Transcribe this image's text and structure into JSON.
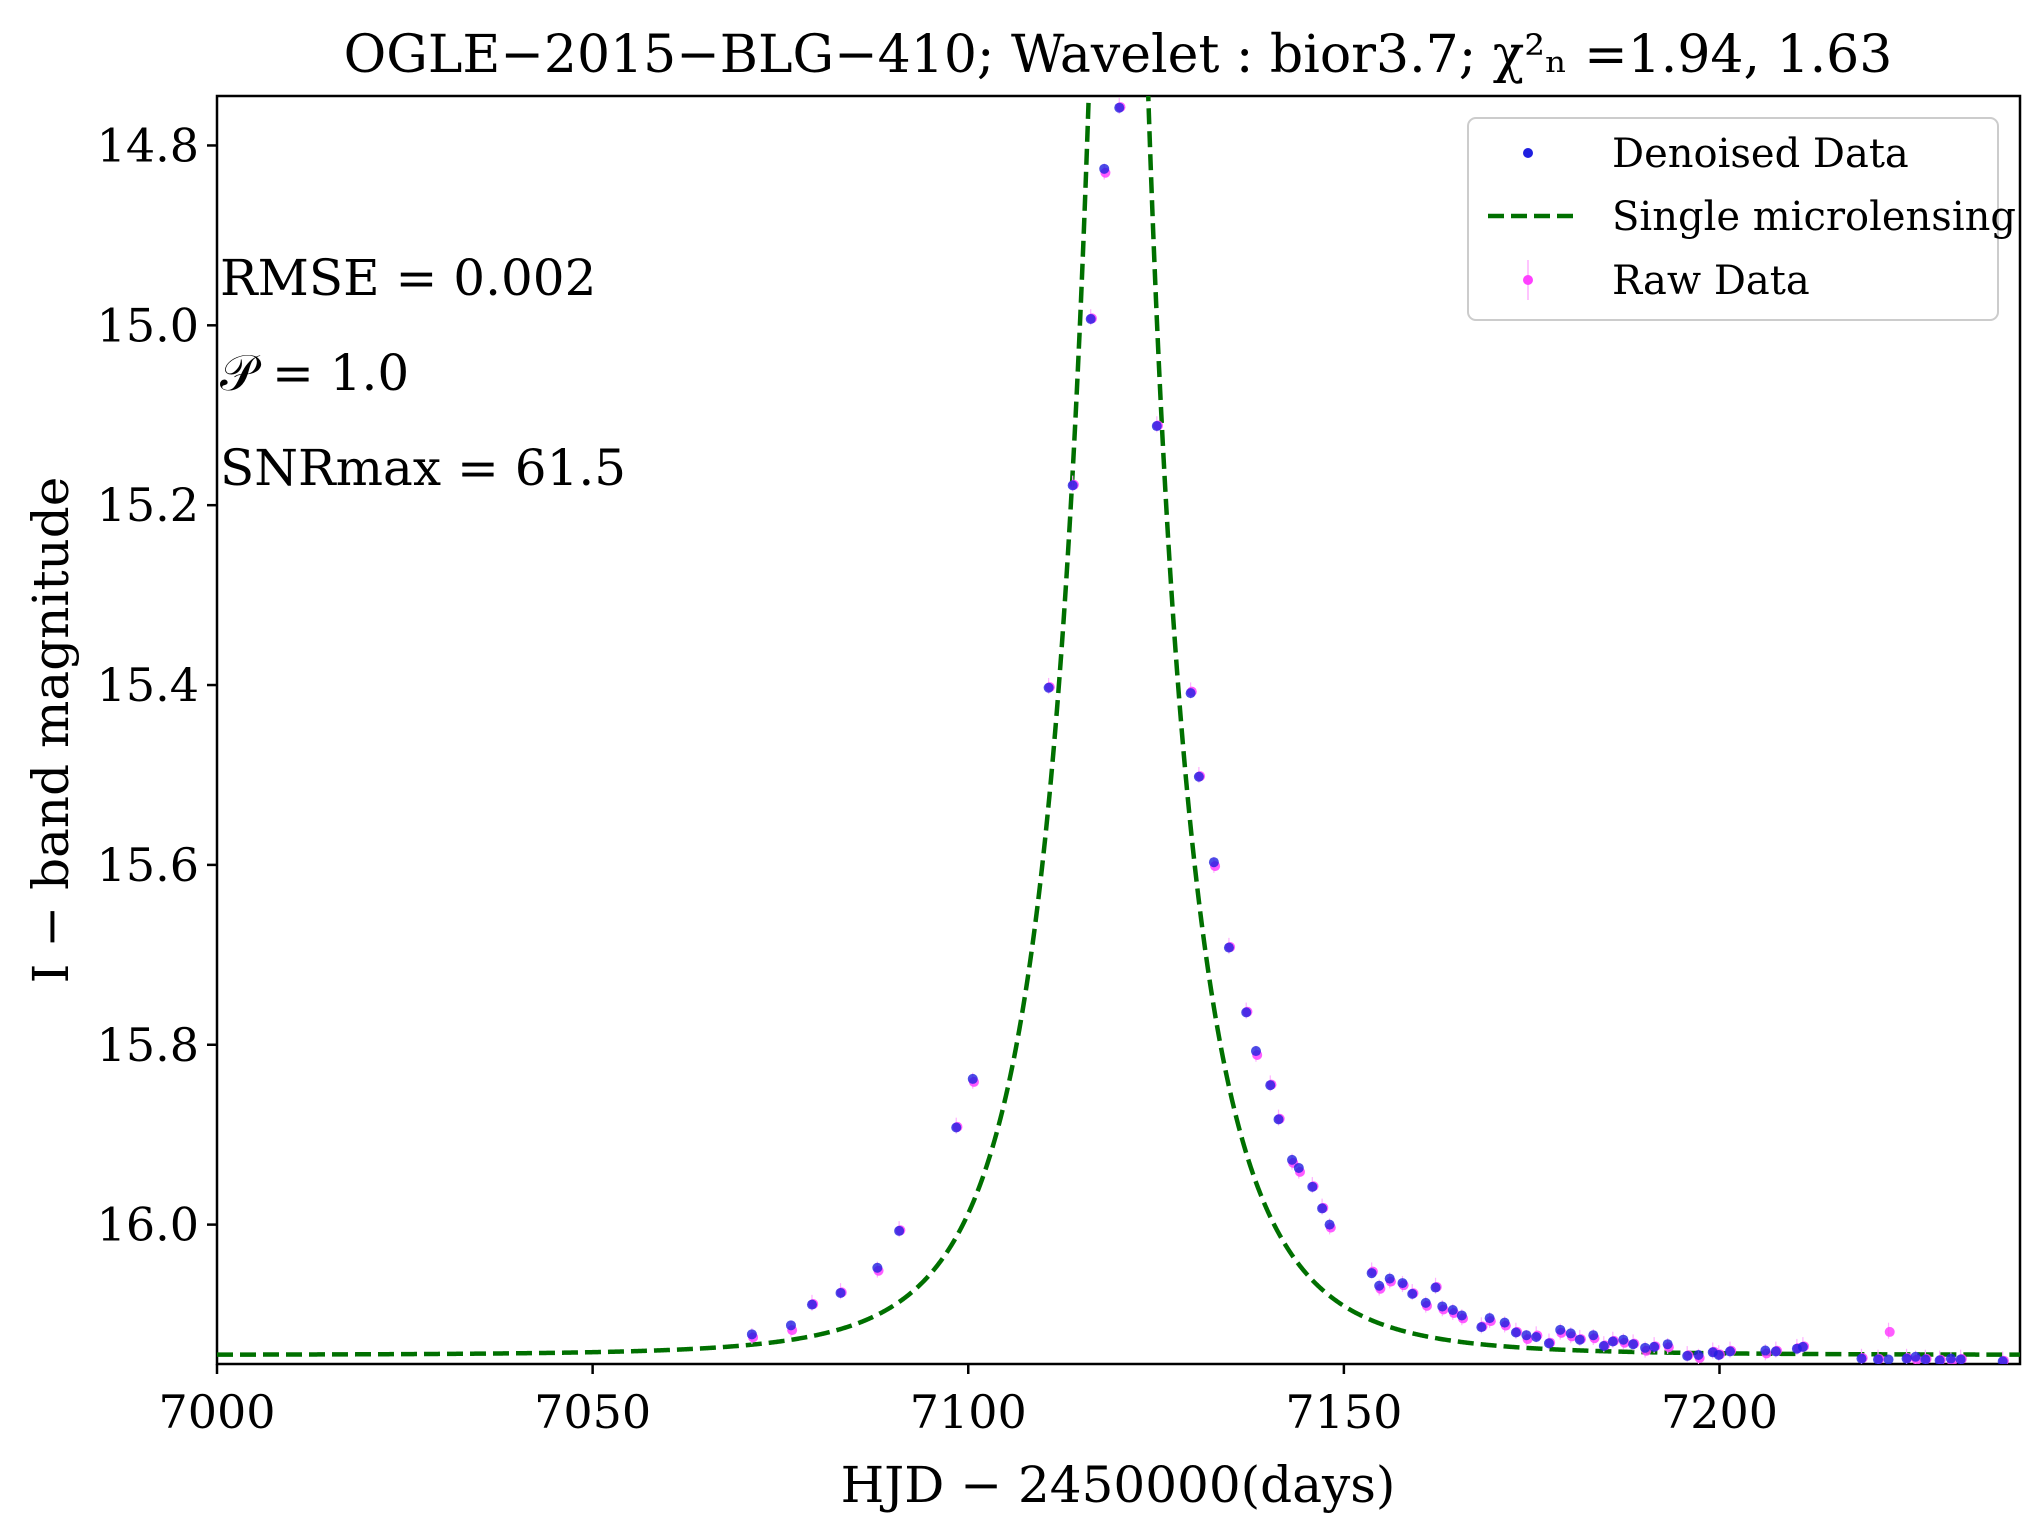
{
  "chart_data": {
    "type": "scatter",
    "title": "OGLE−2015−BLG−410;    Wavelet :  bior3.7;    χ²ₙ =1.94,  1.63",
    "xlabel": "HJD − 2450000(days)",
    "ylabel": "I − band magnitude",
    "xlim": [
      7000,
      7240
    ],
    "ylim": [
      16.155,
      14.745
    ],
    "y_inverted": true,
    "x_ticks": [
      "7000",
      "7050",
      "7100",
      "7150",
      "7200"
    ],
    "y_ticks": [
      "14.8",
      "15.0",
      "15.2",
      "15.4",
      "15.6",
      "15.8",
      "16.0"
    ],
    "grid": false,
    "legend_position": "top-right",
    "annotations": {
      "rmse": "RMSE =  0.002",
      "p": "𝒫 =  1.0",
      "snr": "SNRmax =  61.5"
    },
    "model_params": {
      "t0": 7120.0,
      "u0": 0.0515,
      "tE": 14.2,
      "baseline": 16.145
    },
    "series": [
      {
        "name": "Denoised Data",
        "color": "#1f1fe0",
        "x": [
          7071.2,
          7076.4,
          7079.2,
          7083.0,
          7087.9,
          7090.8,
          7098.4,
          7100.6,
          7110.7,
          7113.9,
          7116.3,
          7118.1,
          7120.1,
          7125.1,
          7129.6,
          7130.7,
          7132.7,
          7134.7,
          7137.0,
          7138.3,
          7140.2,
          7141.3,
          7143.1,
          7144.0,
          7145.8,
          7147.1,
          7148.1,
          7153.7,
          7154.7,
          7156.1,
          7157.8,
          7159.1,
          7160.9,
          7162.2,
          7163.1,
          7164.5,
          7165.7,
          7168.3,
          7169.4,
          7171.4,
          7172.9,
          7174.3,
          7175.6,
          7177.3,
          7178.8,
          7180.2,
          7181.4,
          7183.2,
          7184.6,
          7185.8,
          7187.2,
          7188.5,
          7190.1,
          7191.3,
          7193.1,
          7195.7,
          7197.2,
          7199.1,
          7199.9,
          7201.4,
          7206.1,
          7207.5,
          7210.3,
          7211.1,
          7218.9,
          7221.1,
          7222.5,
          7224.9,
          7226.1,
          7227.4,
          7229.3,
          7230.8,
          7232.1,
          7237.7
        ],
        "y": [
          16.122,
          16.112,
          16.089,
          16.076,
          16.048,
          16.007,
          15.892,
          15.838,
          15.403,
          15.178,
          14.993,
          14.826,
          14.758,
          15.112,
          15.409,
          15.502,
          15.597,
          15.692,
          15.764,
          15.807,
          15.845,
          15.883,
          15.928,
          15.937,
          15.958,
          15.982,
          16.0,
          16.054,
          16.068,
          16.06,
          16.065,
          16.077,
          16.087,
          16.07,
          16.091,
          16.095,
          16.101,
          16.114,
          16.104,
          16.109,
          16.12,
          16.123,
          16.125,
          16.132,
          16.117,
          16.121,
          16.128,
          16.123,
          16.135,
          16.13,
          16.128,
          16.133,
          16.137,
          16.136,
          16.133,
          16.146,
          16.145,
          16.142,
          16.145,
          16.141,
          16.14,
          16.141,
          16.138,
          16.136,
          16.149,
          16.15,
          16.15,
          16.149,
          16.147,
          16.15,
          16.151,
          16.149,
          16.15,
          16.152
        ]
      },
      {
        "name": "Single microlensing",
        "color": "#007000"
      },
      {
        "name": "Raw Data",
        "color": "#ff40ff",
        "x": [
          7071.2,
          7076.4,
          7079.2,
          7083.0,
          7087.9,
          7090.8,
          7098.4,
          7100.6,
          7110.7,
          7113.9,
          7116.3,
          7118.1,
          7120.1,
          7125.1,
          7129.6,
          7130.7,
          7132.7,
          7134.7,
          7137.0,
          7138.3,
          7140.2,
          7141.3,
          7143.1,
          7144.0,
          7145.8,
          7147.1,
          7148.1,
          7153.7,
          7154.7,
          7156.1,
          7157.8,
          7159.1,
          7160.9,
          7162.2,
          7163.1,
          7164.5,
          7165.7,
          7168.3,
          7169.4,
          7171.4,
          7172.9,
          7174.3,
          7175.6,
          7177.3,
          7178.8,
          7180.2,
          7181.4,
          7183.2,
          7184.6,
          7185.8,
          7187.2,
          7188.5,
          7190.1,
          7191.3,
          7193.1,
          7195.7,
          7197.2,
          7199.1,
          7199.9,
          7201.4,
          7206.1,
          7207.5,
          7210.3,
          7211.1,
          7218.9,
          7221.1,
          7222.5,
          7224.9,
          7226.1,
          7227.4,
          7229.3,
          7230.8,
          7232.1,
          7237.7
        ],
        "y": [
          16.124,
          16.116,
          16.087,
          16.074,
          16.05,
          16.005,
          15.89,
          15.84,
          15.401,
          15.176,
          14.991,
          14.829,
          14.756,
          15.11,
          15.406,
          15.5,
          15.6,
          15.69,
          15.762,
          15.81,
          15.843,
          15.881,
          15.93,
          15.94,
          15.956,
          15.98,
          16.002,
          16.051,
          16.07,
          16.062,
          16.066,
          16.075,
          16.089,
          16.068,
          16.093,
          16.097,
          16.103,
          16.112,
          16.106,
          16.111,
          16.118,
          16.126,
          16.122,
          16.13,
          16.119,
          16.123,
          16.126,
          16.125,
          16.133,
          16.128,
          16.13,
          16.131,
          16.139,
          16.134,
          16.135,
          16.144,
          16.147,
          16.14,
          16.143,
          16.139,
          16.142,
          16.139,
          16.136,
          16.134,
          16.147,
          16.148,
          16.118,
          16.147,
          16.149,
          16.148,
          16.149,
          16.151,
          16.148,
          16.15
        ]
      }
    ]
  }
}
